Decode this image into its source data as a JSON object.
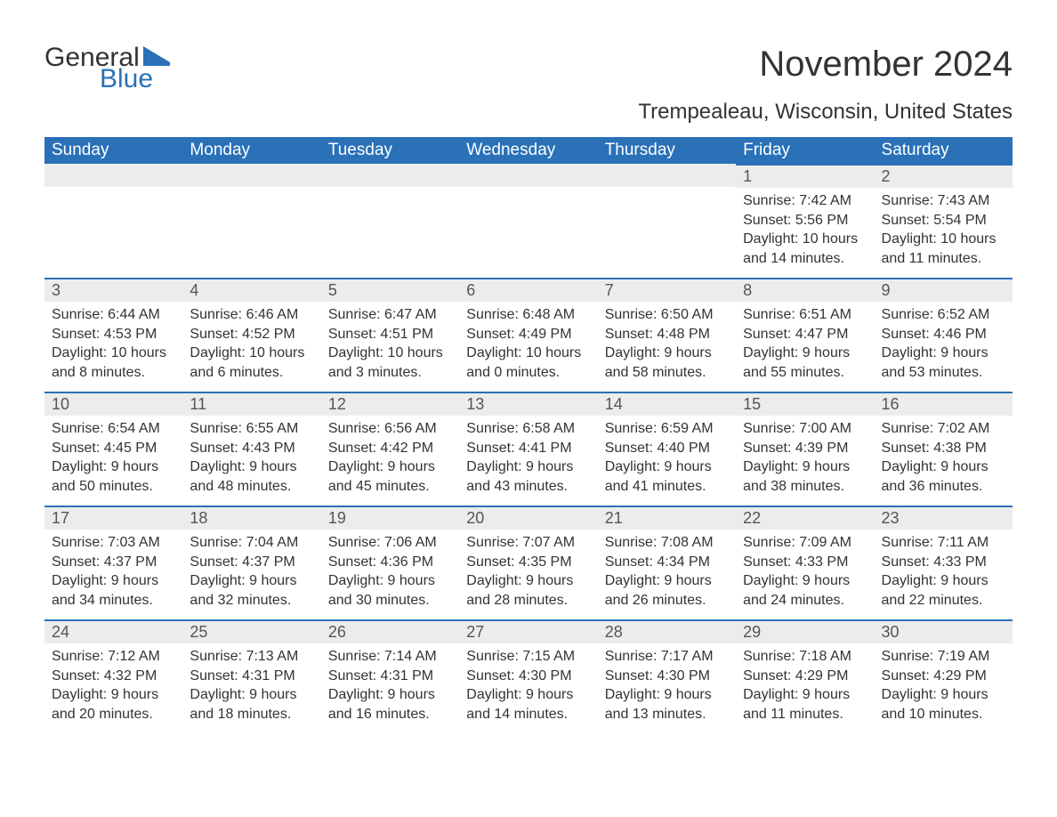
{
  "logo": {
    "text1": "General",
    "text2": "Blue",
    "flag_color": "#2a71b8"
  },
  "title": "November 2024",
  "subtitle": "Trempealeau, Wisconsin, United States",
  "colors": {
    "header_bg": "#2a71b8",
    "header_text": "#ffffff",
    "daynum_bg": "#ececec",
    "daynum_border": "#2a71b8",
    "body_text": "#333333",
    "background": "#ffffff"
  },
  "daysOfWeek": [
    "Sunday",
    "Monday",
    "Tuesday",
    "Wednesday",
    "Thursday",
    "Friday",
    "Saturday"
  ],
  "startOffset": 5,
  "days": [
    {
      "n": 1,
      "sunrise": "7:42 AM",
      "sunset": "5:56 PM",
      "daylight": "10 hours and 14 minutes."
    },
    {
      "n": 2,
      "sunrise": "7:43 AM",
      "sunset": "5:54 PM",
      "daylight": "10 hours and 11 minutes."
    },
    {
      "n": 3,
      "sunrise": "6:44 AM",
      "sunset": "4:53 PM",
      "daylight": "10 hours and 8 minutes."
    },
    {
      "n": 4,
      "sunrise": "6:46 AM",
      "sunset": "4:52 PM",
      "daylight": "10 hours and 6 minutes."
    },
    {
      "n": 5,
      "sunrise": "6:47 AM",
      "sunset": "4:51 PM",
      "daylight": "10 hours and 3 minutes."
    },
    {
      "n": 6,
      "sunrise": "6:48 AM",
      "sunset": "4:49 PM",
      "daylight": "10 hours and 0 minutes."
    },
    {
      "n": 7,
      "sunrise": "6:50 AM",
      "sunset": "4:48 PM",
      "daylight": "9 hours and 58 minutes."
    },
    {
      "n": 8,
      "sunrise": "6:51 AM",
      "sunset": "4:47 PM",
      "daylight": "9 hours and 55 minutes."
    },
    {
      "n": 9,
      "sunrise": "6:52 AM",
      "sunset": "4:46 PM",
      "daylight": "9 hours and 53 minutes."
    },
    {
      "n": 10,
      "sunrise": "6:54 AM",
      "sunset": "4:45 PM",
      "daylight": "9 hours and 50 minutes."
    },
    {
      "n": 11,
      "sunrise": "6:55 AM",
      "sunset": "4:43 PM",
      "daylight": "9 hours and 48 minutes."
    },
    {
      "n": 12,
      "sunrise": "6:56 AM",
      "sunset": "4:42 PM",
      "daylight": "9 hours and 45 minutes."
    },
    {
      "n": 13,
      "sunrise": "6:58 AM",
      "sunset": "4:41 PM",
      "daylight": "9 hours and 43 minutes."
    },
    {
      "n": 14,
      "sunrise": "6:59 AM",
      "sunset": "4:40 PM",
      "daylight": "9 hours and 41 minutes."
    },
    {
      "n": 15,
      "sunrise": "7:00 AM",
      "sunset": "4:39 PM",
      "daylight": "9 hours and 38 minutes."
    },
    {
      "n": 16,
      "sunrise": "7:02 AM",
      "sunset": "4:38 PM",
      "daylight": "9 hours and 36 minutes."
    },
    {
      "n": 17,
      "sunrise": "7:03 AM",
      "sunset": "4:37 PM",
      "daylight": "9 hours and 34 minutes."
    },
    {
      "n": 18,
      "sunrise": "7:04 AM",
      "sunset": "4:37 PM",
      "daylight": "9 hours and 32 minutes."
    },
    {
      "n": 19,
      "sunrise": "7:06 AM",
      "sunset": "4:36 PM",
      "daylight": "9 hours and 30 minutes."
    },
    {
      "n": 20,
      "sunrise": "7:07 AM",
      "sunset": "4:35 PM",
      "daylight": "9 hours and 28 minutes."
    },
    {
      "n": 21,
      "sunrise": "7:08 AM",
      "sunset": "4:34 PM",
      "daylight": "9 hours and 26 minutes."
    },
    {
      "n": 22,
      "sunrise": "7:09 AM",
      "sunset": "4:33 PM",
      "daylight": "9 hours and 24 minutes."
    },
    {
      "n": 23,
      "sunrise": "7:11 AM",
      "sunset": "4:33 PM",
      "daylight": "9 hours and 22 minutes."
    },
    {
      "n": 24,
      "sunrise": "7:12 AM",
      "sunset": "4:32 PM",
      "daylight": "9 hours and 20 minutes."
    },
    {
      "n": 25,
      "sunrise": "7:13 AM",
      "sunset": "4:31 PM",
      "daylight": "9 hours and 18 minutes."
    },
    {
      "n": 26,
      "sunrise": "7:14 AM",
      "sunset": "4:31 PM",
      "daylight": "9 hours and 16 minutes."
    },
    {
      "n": 27,
      "sunrise": "7:15 AM",
      "sunset": "4:30 PM",
      "daylight": "9 hours and 14 minutes."
    },
    {
      "n": 28,
      "sunrise": "7:17 AM",
      "sunset": "4:30 PM",
      "daylight": "9 hours and 13 minutes."
    },
    {
      "n": 29,
      "sunrise": "7:18 AM",
      "sunset": "4:29 PM",
      "daylight": "9 hours and 11 minutes."
    },
    {
      "n": 30,
      "sunrise": "7:19 AM",
      "sunset": "4:29 PM",
      "daylight": "9 hours and 10 minutes."
    }
  ],
  "labels": {
    "sunrise": "Sunrise: ",
    "sunset": "Sunset: ",
    "daylight": "Daylight: "
  }
}
